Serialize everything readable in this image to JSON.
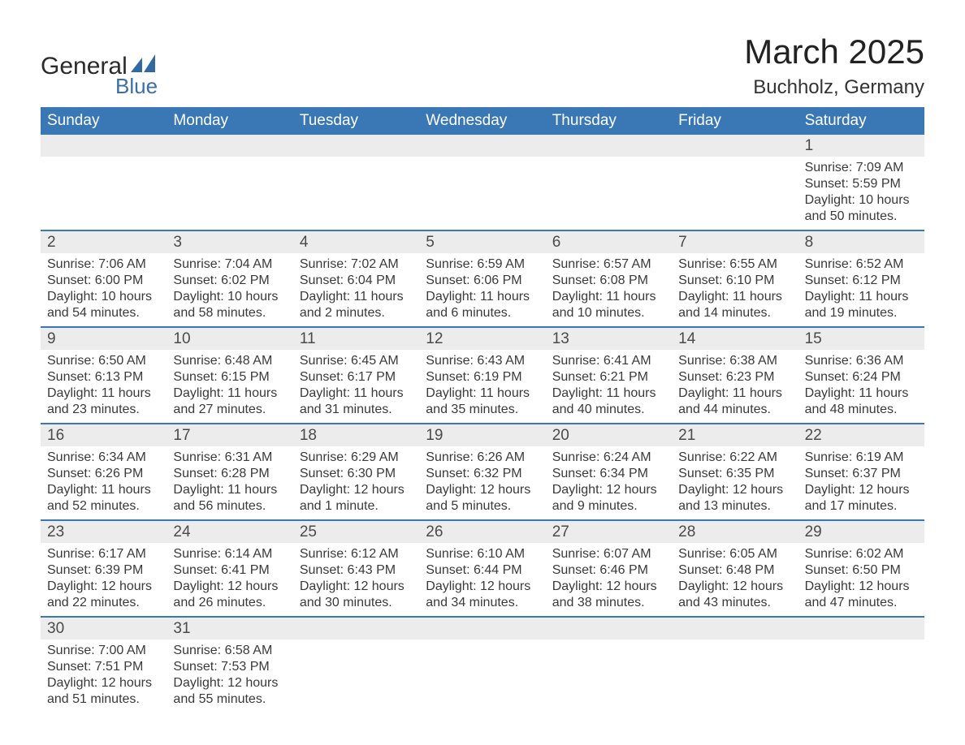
{
  "brand": {
    "word1": "General",
    "word2": "Blue",
    "icon_color": "#2f6aa3"
  },
  "header": {
    "month_title": "March 2025",
    "location": "Buchholz, Germany"
  },
  "colors": {
    "weekday_bg": "#3a78b5",
    "weekday_fg": "#ffffff",
    "daynum_bg": "#ececec",
    "row_border": "#3a78b5",
    "text": "#3a3a3a",
    "background": "#ffffff"
  },
  "typography": {
    "title_fontsize_pt": 32,
    "location_fontsize_pt": 18,
    "weekday_fontsize_pt": 14,
    "daynum_fontsize_pt": 14,
    "body_fontsize_pt": 12
  },
  "weekdays": [
    "Sunday",
    "Monday",
    "Tuesday",
    "Wednesday",
    "Thursday",
    "Friday",
    "Saturday"
  ],
  "weeks": [
    {
      "days": [
        {
          "num": "",
          "sunrise": "",
          "sunset": "",
          "daylight": ""
        },
        {
          "num": "",
          "sunrise": "",
          "sunset": "",
          "daylight": ""
        },
        {
          "num": "",
          "sunrise": "",
          "sunset": "",
          "daylight": ""
        },
        {
          "num": "",
          "sunrise": "",
          "sunset": "",
          "daylight": ""
        },
        {
          "num": "",
          "sunrise": "",
          "sunset": "",
          "daylight": ""
        },
        {
          "num": "",
          "sunrise": "",
          "sunset": "",
          "daylight": ""
        },
        {
          "num": "1",
          "sunrise": "Sunrise: 7:09 AM",
          "sunset": "Sunset: 5:59 PM",
          "daylight": "Daylight: 10 hours and 50 minutes."
        }
      ]
    },
    {
      "days": [
        {
          "num": "2",
          "sunrise": "Sunrise: 7:06 AM",
          "sunset": "Sunset: 6:00 PM",
          "daylight": "Daylight: 10 hours and 54 minutes."
        },
        {
          "num": "3",
          "sunrise": "Sunrise: 7:04 AM",
          "sunset": "Sunset: 6:02 PM",
          "daylight": "Daylight: 10 hours and 58 minutes."
        },
        {
          "num": "4",
          "sunrise": "Sunrise: 7:02 AM",
          "sunset": "Sunset: 6:04 PM",
          "daylight": "Daylight: 11 hours and 2 minutes."
        },
        {
          "num": "5",
          "sunrise": "Sunrise: 6:59 AM",
          "sunset": "Sunset: 6:06 PM",
          "daylight": "Daylight: 11 hours and 6 minutes."
        },
        {
          "num": "6",
          "sunrise": "Sunrise: 6:57 AM",
          "sunset": "Sunset: 6:08 PM",
          "daylight": "Daylight: 11 hours and 10 minutes."
        },
        {
          "num": "7",
          "sunrise": "Sunrise: 6:55 AM",
          "sunset": "Sunset: 6:10 PM",
          "daylight": "Daylight: 11 hours and 14 minutes."
        },
        {
          "num": "8",
          "sunrise": "Sunrise: 6:52 AM",
          "sunset": "Sunset: 6:12 PM",
          "daylight": "Daylight: 11 hours and 19 minutes."
        }
      ]
    },
    {
      "days": [
        {
          "num": "9",
          "sunrise": "Sunrise: 6:50 AM",
          "sunset": "Sunset: 6:13 PM",
          "daylight": "Daylight: 11 hours and 23 minutes."
        },
        {
          "num": "10",
          "sunrise": "Sunrise: 6:48 AM",
          "sunset": "Sunset: 6:15 PM",
          "daylight": "Daylight: 11 hours and 27 minutes."
        },
        {
          "num": "11",
          "sunrise": "Sunrise: 6:45 AM",
          "sunset": "Sunset: 6:17 PM",
          "daylight": "Daylight: 11 hours and 31 minutes."
        },
        {
          "num": "12",
          "sunrise": "Sunrise: 6:43 AM",
          "sunset": "Sunset: 6:19 PM",
          "daylight": "Daylight: 11 hours and 35 minutes."
        },
        {
          "num": "13",
          "sunrise": "Sunrise: 6:41 AM",
          "sunset": "Sunset: 6:21 PM",
          "daylight": "Daylight: 11 hours and 40 minutes."
        },
        {
          "num": "14",
          "sunrise": "Sunrise: 6:38 AM",
          "sunset": "Sunset: 6:23 PM",
          "daylight": "Daylight: 11 hours and 44 minutes."
        },
        {
          "num": "15",
          "sunrise": "Sunrise: 6:36 AM",
          "sunset": "Sunset: 6:24 PM",
          "daylight": "Daylight: 11 hours and 48 minutes."
        }
      ]
    },
    {
      "days": [
        {
          "num": "16",
          "sunrise": "Sunrise: 6:34 AM",
          "sunset": "Sunset: 6:26 PM",
          "daylight": "Daylight: 11 hours and 52 minutes."
        },
        {
          "num": "17",
          "sunrise": "Sunrise: 6:31 AM",
          "sunset": "Sunset: 6:28 PM",
          "daylight": "Daylight: 11 hours and 56 minutes."
        },
        {
          "num": "18",
          "sunrise": "Sunrise: 6:29 AM",
          "sunset": "Sunset: 6:30 PM",
          "daylight": "Daylight: 12 hours and 1 minute."
        },
        {
          "num": "19",
          "sunrise": "Sunrise: 6:26 AM",
          "sunset": "Sunset: 6:32 PM",
          "daylight": "Daylight: 12 hours and 5 minutes."
        },
        {
          "num": "20",
          "sunrise": "Sunrise: 6:24 AM",
          "sunset": "Sunset: 6:34 PM",
          "daylight": "Daylight: 12 hours and 9 minutes."
        },
        {
          "num": "21",
          "sunrise": "Sunrise: 6:22 AM",
          "sunset": "Sunset: 6:35 PM",
          "daylight": "Daylight: 12 hours and 13 minutes."
        },
        {
          "num": "22",
          "sunrise": "Sunrise: 6:19 AM",
          "sunset": "Sunset: 6:37 PM",
          "daylight": "Daylight: 12 hours and 17 minutes."
        }
      ]
    },
    {
      "days": [
        {
          "num": "23",
          "sunrise": "Sunrise: 6:17 AM",
          "sunset": "Sunset: 6:39 PM",
          "daylight": "Daylight: 12 hours and 22 minutes."
        },
        {
          "num": "24",
          "sunrise": "Sunrise: 6:14 AM",
          "sunset": "Sunset: 6:41 PM",
          "daylight": "Daylight: 12 hours and 26 minutes."
        },
        {
          "num": "25",
          "sunrise": "Sunrise: 6:12 AM",
          "sunset": "Sunset: 6:43 PM",
          "daylight": "Daylight: 12 hours and 30 minutes."
        },
        {
          "num": "26",
          "sunrise": "Sunrise: 6:10 AM",
          "sunset": "Sunset: 6:44 PM",
          "daylight": "Daylight: 12 hours and 34 minutes."
        },
        {
          "num": "27",
          "sunrise": "Sunrise: 6:07 AM",
          "sunset": "Sunset: 6:46 PM",
          "daylight": "Daylight: 12 hours and 38 minutes."
        },
        {
          "num": "28",
          "sunrise": "Sunrise: 6:05 AM",
          "sunset": "Sunset: 6:48 PM",
          "daylight": "Daylight: 12 hours and 43 minutes."
        },
        {
          "num": "29",
          "sunrise": "Sunrise: 6:02 AM",
          "sunset": "Sunset: 6:50 PM",
          "daylight": "Daylight: 12 hours and 47 minutes."
        }
      ]
    },
    {
      "days": [
        {
          "num": "30",
          "sunrise": "Sunrise: 7:00 AM",
          "sunset": "Sunset: 7:51 PM",
          "daylight": "Daylight: 12 hours and 51 minutes."
        },
        {
          "num": "31",
          "sunrise": "Sunrise: 6:58 AM",
          "sunset": "Sunset: 7:53 PM",
          "daylight": "Daylight: 12 hours and 55 minutes."
        },
        {
          "num": "",
          "sunrise": "",
          "sunset": "",
          "daylight": ""
        },
        {
          "num": "",
          "sunrise": "",
          "sunset": "",
          "daylight": ""
        },
        {
          "num": "",
          "sunrise": "",
          "sunset": "",
          "daylight": ""
        },
        {
          "num": "",
          "sunrise": "",
          "sunset": "",
          "daylight": ""
        },
        {
          "num": "",
          "sunrise": "",
          "sunset": "",
          "daylight": ""
        }
      ]
    }
  ]
}
